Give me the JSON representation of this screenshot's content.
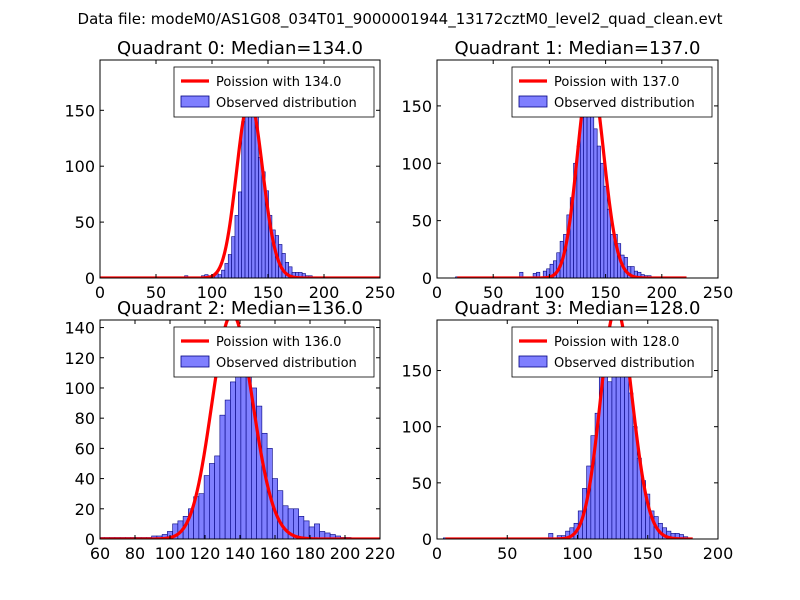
{
  "suptitle": "Data file: modeM0/AS1G08_034T01_9000001944_13172cztM0_level2_quad_clean.evt",
  "colors": {
    "line": "#ff0000",
    "bar_fill": "#7f7fff",
    "bar_edge": "#00007f",
    "background": "#ffffff"
  },
  "chart_data": [
    {
      "type": "bar",
      "title": "Quadrant 0: Median=134.0",
      "median": 134.0,
      "legend": [
        "Poission with 134.0",
        "Observed distribution"
      ],
      "legend_loc": "upper-right",
      "xlim": [
        0,
        250
      ],
      "ylim": [
        0,
        195
      ],
      "xticks": [
        0,
        50,
        100,
        150,
        200,
        250
      ],
      "yticks": [
        0,
        50,
        100,
        150
      ],
      "curve_range": [
        0,
        250
      ],
      "bar_width": 3,
      "bar_centers": [
        74,
        77,
        80,
        92,
        95,
        98,
        101,
        104,
        107,
        110,
        113,
        116,
        119,
        122,
        125,
        128,
        131,
        134,
        137,
        140,
        143,
        146,
        149,
        152,
        155,
        158,
        161,
        164,
        167,
        170,
        173,
        176,
        179,
        182,
        185,
        188,
        191,
        194,
        197,
        200,
        203,
        206
      ],
      "bar_values": [
        1,
        2,
        1,
        2,
        3,
        2,
        3,
        5,
        3,
        7,
        13,
        21,
        37,
        56,
        77,
        140,
        170,
        176,
        155,
        145,
        108,
        95,
        78,
        56,
        43,
        38,
        30,
        22,
        14,
        10,
        5,
        5,
        5,
        4,
        2,
        2,
        1,
        1,
        1,
        1,
        1,
        1
      ]
    },
    {
      "type": "bar",
      "title": "Quadrant 1: Median=137.0",
      "median": 137.0,
      "legend": [
        "Poission with 137.0",
        "Observed distribution"
      ],
      "legend_loc": "upper-right",
      "xlim": [
        0,
        250
      ],
      "ylim": [
        0,
        190
      ],
      "xticks": [
        0,
        50,
        100,
        150,
        200,
        250
      ],
      "yticks": [
        0,
        50,
        100,
        150
      ],
      "curve_range": [
        18,
        222
      ],
      "bar_width": 3,
      "bar_centers": [
        18,
        30,
        75,
        87,
        90,
        96,
        99,
        102,
        105,
        108,
        111,
        114,
        117,
        120,
        123,
        126,
        129,
        132,
        135,
        138,
        141,
        144,
        147,
        150,
        153,
        156,
        159,
        162,
        165,
        168,
        171,
        174,
        177,
        180,
        183,
        186,
        189,
        192,
        195,
        198,
        201
      ],
      "bar_values": [
        1,
        1,
        5,
        4,
        5,
        6,
        8,
        12,
        15,
        22,
        32,
        38,
        55,
        70,
        100,
        115,
        140,
        150,
        150,
        145,
        130,
        115,
        100,
        80,
        60,
        38,
        38,
        30,
        20,
        18,
        10,
        10,
        6,
        5,
        3,
        2,
        2,
        1,
        1,
        1,
        1
      ]
    },
    {
      "type": "bar",
      "title": "Quadrant 2: Median=136.0",
      "median": 136.0,
      "legend": [
        "Poission with 136.0",
        "Observed distribution"
      ],
      "legend_loc": "upper-right",
      "xlim": [
        60,
        220
      ],
      "ylim": [
        0,
        145
      ],
      "xticks": [
        60,
        80,
        100,
        120,
        140,
        160,
        180,
        200,
        220
      ],
      "yticks": [
        0,
        20,
        40,
        60,
        80,
        100,
        120,
        140
      ],
      "curve_range": [
        60,
        220
      ],
      "bar_width": 3,
      "bar_centers": [
        61,
        64,
        67,
        70,
        73,
        76,
        79,
        82,
        85,
        88,
        91,
        94,
        97,
        100,
        103,
        106,
        109,
        112,
        115,
        118,
        121,
        124,
        127,
        130,
        133,
        136,
        139,
        142,
        145,
        148,
        151,
        154,
        157,
        160,
        163,
        166,
        169,
        172,
        175,
        178,
        181,
        184,
        187,
        190,
        193,
        196,
        199,
        202
      ],
      "bar_values": [
        1,
        1,
        1,
        1,
        1,
        1,
        1,
        1,
        1,
        1,
        2,
        2,
        3,
        5,
        10,
        12,
        15,
        20,
        28,
        30,
        42,
        50,
        55,
        82,
        92,
        104,
        123,
        138,
        115,
        100,
        88,
        70,
        60,
        40,
        32,
        22,
        20,
        20,
        15,
        12,
        8,
        10,
        5,
        4,
        3,
        2,
        1,
        1
      ]
    },
    {
      "type": "bar",
      "title": "Quadrant 3: Median=128.0",
      "median": 128.0,
      "legend": [
        "Poission with 128.0",
        "Observed distribution"
      ],
      "legend_loc": "upper-right",
      "xlim": [
        0,
        200
      ],
      "ylim": [
        0,
        195
      ],
      "xticks": [
        0,
        50,
        100,
        150,
        200
      ],
      "yticks": [
        0,
        50,
        100,
        150
      ],
      "curve_range": [
        6,
        182
      ],
      "bar_width": 3,
      "bar_centers": [
        6,
        51,
        69,
        81,
        87,
        90,
        93,
        96,
        99,
        102,
        105,
        108,
        111,
        114,
        117,
        120,
        123,
        126,
        129,
        132,
        135,
        138,
        141,
        144,
        147,
        150,
        153,
        156,
        159,
        162,
        165,
        168,
        171,
        174,
        177,
        180
      ],
      "bar_values": [
        1,
        1,
        1,
        5,
        3,
        3,
        7,
        10,
        14,
        25,
        45,
        65,
        92,
        112,
        150,
        160,
        140,
        165,
        158,
        152,
        147,
        130,
        100,
        72,
        52,
        40,
        25,
        20,
        14,
        10,
        7,
        5,
        5,
        4,
        2,
        1
      ]
    }
  ]
}
